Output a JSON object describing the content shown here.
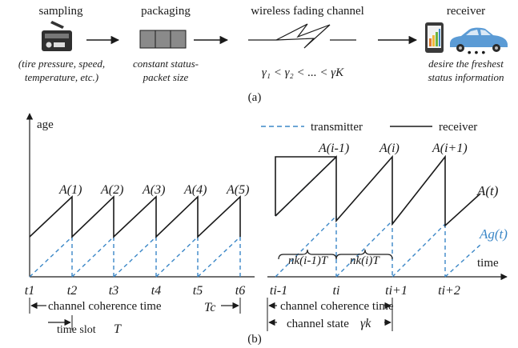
{
  "pipeline": {
    "stages": [
      {
        "title": "sampling",
        "note_lines": [
          "(tire pressure, speed,",
          "temperature, etc.)"
        ]
      },
      {
        "title": "packaging",
        "note_lines": [
          "constant status-",
          "packet size"
        ]
      },
      {
        "title": "wireless fading channel",
        "formula": "γ₁ < γ₂ < ... < γK"
      },
      {
        "title": "receiver",
        "note_lines": [
          "desire the freshest",
          "status information"
        ]
      }
    ],
    "caption": "(a)"
  },
  "plot": {
    "y_axis_label": "age",
    "x_axis_label": "time",
    "legend": {
      "transmitter": "transmitter",
      "receiver": "receiver"
    },
    "left": {
      "peaks": [
        "A(1)",
        "A(2)",
        "A(3)",
        "A(4)",
        "A(5)"
      ],
      "ticks": [
        "t1",
        "t2",
        "t3",
        "t4",
        "t5",
        "t6"
      ],
      "coherence_label": "channel coherence time",
      "coherence_symbol": "Tc",
      "slot_label": "time slot",
      "slot_symbol": "T"
    },
    "right": {
      "peaks": [
        "A(i-1)",
        "A(i)",
        "A(i+1)"
      ],
      "curve_receiver": "A(t)",
      "curve_transmitter": "Ag(t)",
      "ticks": [
        "ti-1",
        "ti",
        "ti+1",
        "ti+2"
      ],
      "brace_labels": [
        "nk(i-1)T",
        "nk(i)T"
      ],
      "coherence_label": "channel coherence time",
      "state_label": "channel state",
      "state_symbol": "γk"
    },
    "caption": "(b)",
    "colors": {
      "transmitter": "#3b87c7",
      "receiver": "#1a1a1a"
    }
  }
}
